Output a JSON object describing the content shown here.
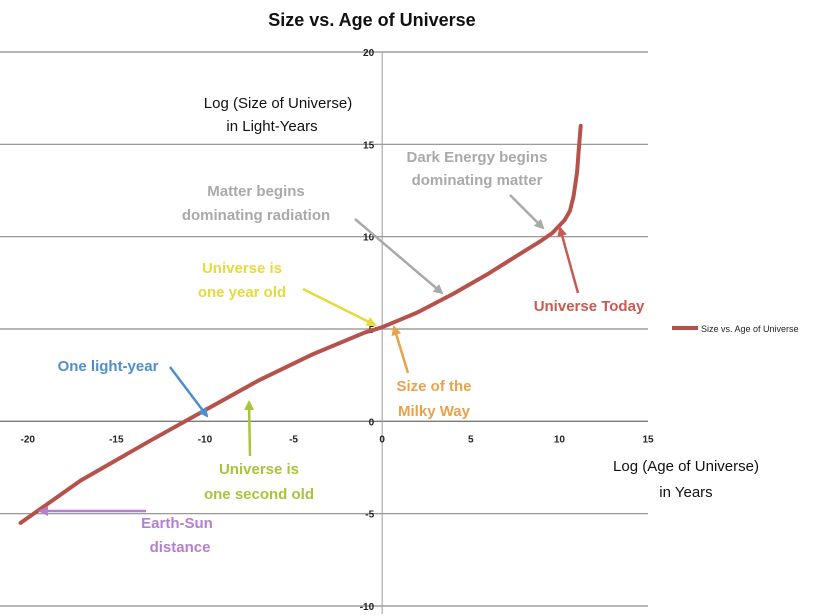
{
  "chart_data": {
    "type": "line",
    "title": "Size vs. Age of Universe",
    "xlabel": [
      "Log (Age of Universe)",
      "in Years"
    ],
    "ylabel": [
      "Log (Size of Universe)",
      "in Light-Years"
    ],
    "xlim": [
      -21,
      15
    ],
    "ylim": [
      -10,
      20
    ],
    "x_ticks": [
      -20,
      -15,
      -10,
      -5,
      0,
      5,
      10,
      15
    ],
    "y_ticks": [
      -10,
      -5,
      0,
      5,
      10,
      15,
      20
    ],
    "grid": "horizontal",
    "legend": {
      "position": "right",
      "entries": [
        "Size vs. Age of Universe"
      ]
    },
    "series": [
      {
        "name": "Size vs. Age of Universe",
        "color": "#b5524b",
        "x": [
          -20.4,
          -17,
          -13,
          -10,
          -7,
          -4,
          -1,
          0,
          1,
          2,
          4,
          6,
          8,
          9,
          9.6,
          10,
          10.3,
          10.6,
          10.8,
          11,
          11.1,
          11.2
        ],
        "y": [
          -5.5,
          -3.2,
          -1.0,
          0.6,
          2.2,
          3.6,
          4.8,
          5.1,
          5.5,
          5.9,
          6.9,
          8.0,
          9.2,
          9.8,
          10.2,
          10.6,
          10.9,
          11.4,
          12.2,
          13.5,
          14.8,
          16.0
        ]
      }
    ],
    "annotations": [
      {
        "lines": [
          "Dark Energy begins",
          "dominating matter"
        ],
        "color": "#a9a9a9",
        "point": [
          9.2,
          10.2
        ]
      },
      {
        "lines": [
          "Matter begins",
          "dominating radiation"
        ],
        "color": "#a9a9a9",
        "point": [
          3.6,
          6.8
        ]
      },
      {
        "lines": [
          "Universe is",
          "one year old"
        ],
        "color": "#e6da3c",
        "point": [
          0,
          5.0
        ]
      },
      {
        "lines": [
          "Universe Today"
        ],
        "color": "#c85a52",
        "point": [
          10.1,
          10.7
        ]
      },
      {
        "lines": [
          "Size of the",
          "Milky Way"
        ],
        "color": "#e8a24a",
        "point": [
          0.9,
          5.1
        ]
      },
      {
        "lines": [
          "One light-year"
        ],
        "color": "#4f8ecd",
        "point": [
          -9.5,
          0.1
        ]
      },
      {
        "lines": [
          "Universe is",
          "one second old"
        ],
        "color": "#a7c43a",
        "point": [
          -7.5,
          1.1
        ]
      },
      {
        "lines": [
          "Earth-Sun",
          "distance"
        ],
        "color": "#b57fcc",
        "point": [
          -19.0,
          -4.9
        ]
      }
    ]
  }
}
